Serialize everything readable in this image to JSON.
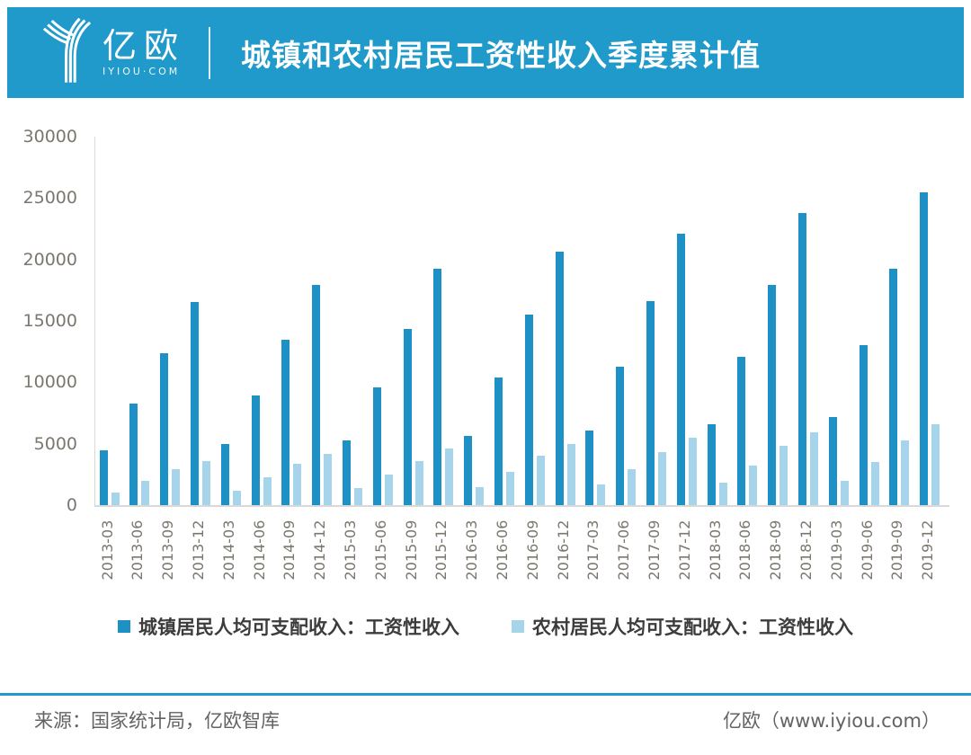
{
  "brand_color": "#1f9aca",
  "header": {
    "logo_cn": "亿欧",
    "logo_domain": "IYIOU·COM",
    "title": "城镇和农村居民工资性收入季度累计值"
  },
  "chart_data": {
    "type": "bar",
    "title": "城镇和农村居民工资性收入季度累计值",
    "xlabel": "",
    "ylabel": "",
    "ylim": [
      0,
      30000
    ],
    "yticks": [
      0,
      5000,
      10000,
      15000,
      20000,
      25000,
      30000
    ],
    "grid": false,
    "legend_position": "bottom",
    "categories": [
      "2013-03",
      "2013-06",
      "2013-09",
      "2013-12",
      "2014-03",
      "2014-06",
      "2014-09",
      "2014-12",
      "2015-03",
      "2015-06",
      "2015-09",
      "2015-12",
      "2016-03",
      "2016-06",
      "2016-09",
      "2016-12",
      "2017-03",
      "2017-06",
      "2017-09",
      "2017-12",
      "2018-03",
      "2018-06",
      "2018-09",
      "2018-12",
      "2019-03",
      "2019-06",
      "2019-09",
      "2019-12"
    ],
    "series": [
      {
        "name": "城镇居民人均可支配收入：工资性收入",
        "color": "#1d90c6",
        "values": [
          4450,
          8250,
          12350,
          16550,
          5000,
          8950,
          13450,
          17950,
          5250,
          9550,
          14350,
          19250,
          5650,
          10400,
          15500,
          20650,
          6100,
          11250,
          16600,
          22100,
          6550,
          12100,
          17900,
          23800,
          7150,
          13000,
          19250,
          25500
        ]
      },
      {
        "name": "农村居民人均可支配收入：工资性收入",
        "color": "#a6d4ea",
        "values": [
          1050,
          2000,
          2900,
          3550,
          1200,
          2300,
          3400,
          4150,
          1400,
          2500,
          3600,
          4600,
          1500,
          2700,
          4000,
          5000,
          1700,
          2950,
          4300,
          5500,
          1850,
          3250,
          4800,
          5950,
          2000,
          3500,
          5250,
          6600
        ]
      }
    ]
  },
  "footer": {
    "source": "来源：国家统计局，亿欧智库",
    "site": "亿欧（www.iyiou.com）"
  }
}
